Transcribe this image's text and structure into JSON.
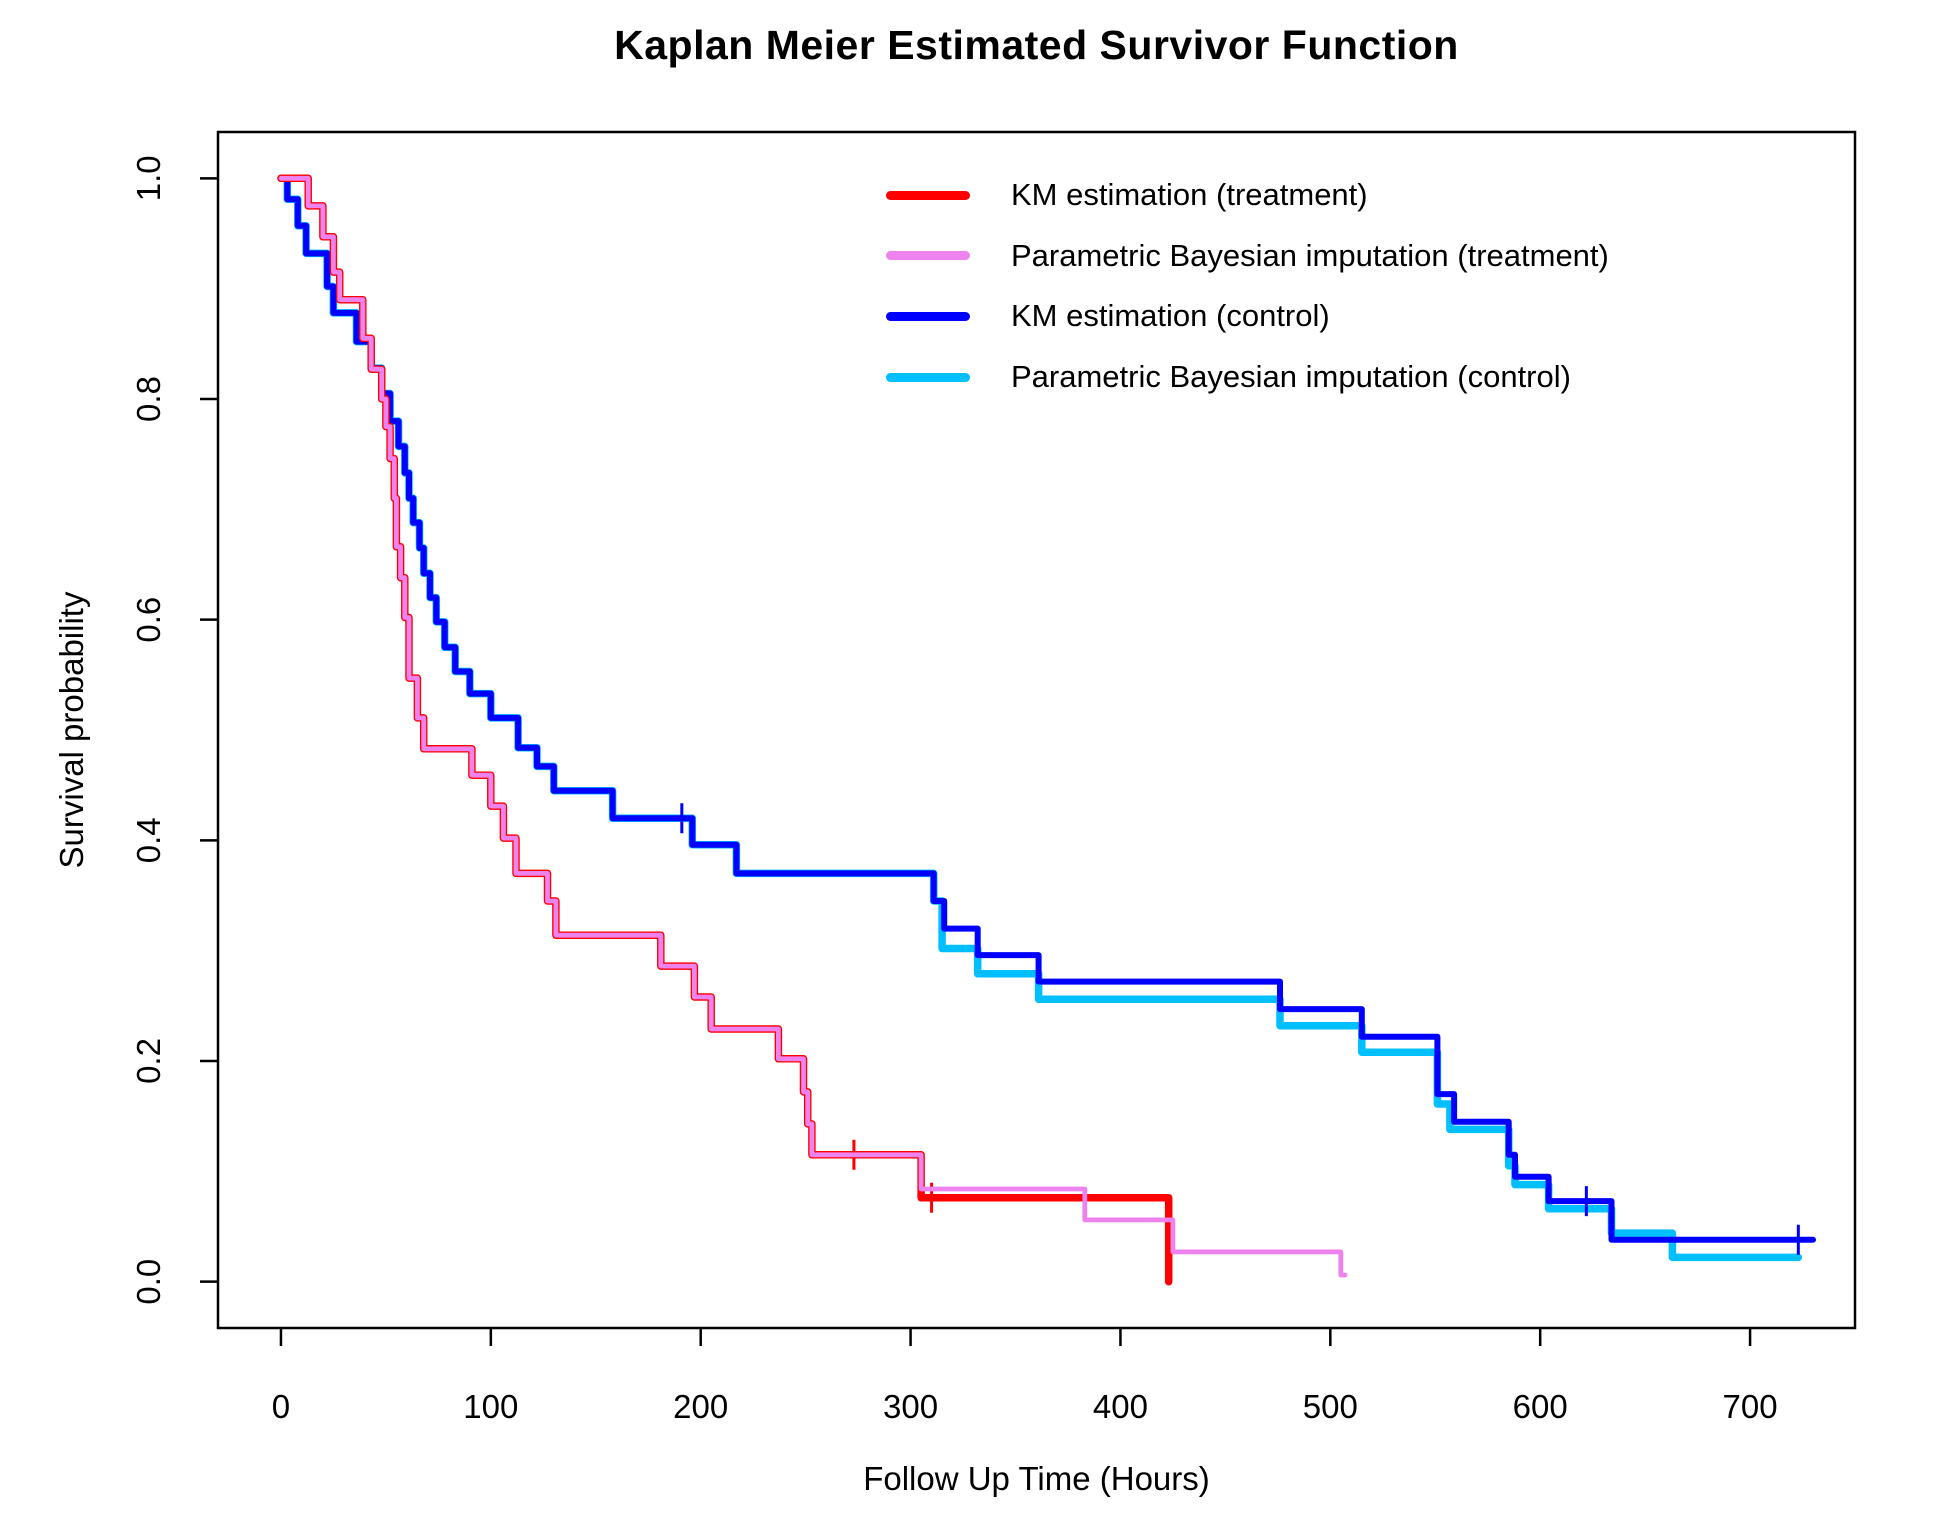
{
  "chart_data": {
    "type": "line",
    "subtype": "kaplan-meier-step",
    "title": "Kaplan Meier Estimated Survivor Function",
    "xlabel": "Follow Up Time (Hours)",
    "ylabel": "Survival probability",
    "xlim": [
      -30,
      750
    ],
    "ylim": [
      -0.042,
      1.042
    ],
    "x_ticks": [
      0,
      100,
      200,
      300,
      400,
      500,
      600,
      700
    ],
    "x_tick_labels": [
      "0",
      "100",
      "200",
      "300",
      "400",
      "500",
      "600",
      "700"
    ],
    "y_ticks": [
      0.0,
      0.2,
      0.4,
      0.6,
      0.8,
      1.0
    ],
    "y_tick_labels": [
      "0.0",
      "0.2",
      "0.4",
      "0.6",
      "0.8",
      "1.0"
    ],
    "grid": false,
    "legend_position": "topright",
    "series": [
      {
        "name": "KM estimation (treatment)",
        "color": "#FF0000",
        "width": 7.5,
        "z": 3,
        "end_t": 423,
        "censors": [
          [
            273,
            0.115
          ],
          [
            310,
            0.076
          ]
        ],
        "points": [
          [
            0,
            1.0
          ],
          [
            13,
            0.975
          ],
          [
            20,
            0.947
          ],
          [
            25,
            0.915
          ],
          [
            28,
            0.89
          ],
          [
            39,
            0.855
          ],
          [
            43,
            0.827
          ],
          [
            48,
            0.8
          ],
          [
            50,
            0.775
          ],
          [
            52,
            0.746
          ],
          [
            54,
            0.71
          ],
          [
            55,
            0.666
          ],
          [
            57,
            0.638
          ],
          [
            59,
            0.602
          ],
          [
            61,
            0.547
          ],
          [
            65,
            0.511
          ],
          [
            68,
            0.483
          ],
          [
            91,
            0.459
          ],
          [
            100,
            0.431
          ],
          [
            106,
            0.402
          ],
          [
            112,
            0.37
          ],
          [
            127,
            0.345
          ],
          [
            131,
            0.314
          ],
          [
            181,
            0.286
          ],
          [
            197,
            0.258
          ],
          [
            205,
            0.229
          ],
          [
            237,
            0.202
          ],
          [
            249,
            0.172
          ],
          [
            251,
            0.143
          ],
          [
            253,
            0.115
          ],
          [
            305,
            0.076
          ],
          [
            423,
            0.0
          ]
        ]
      },
      {
        "name": "Parametric Bayesian imputation (treatment)",
        "color": "#EE82EE",
        "width": 4.8,
        "z": 4,
        "end_t": 507,
        "censors": [],
        "points": [
          [
            0,
            1.0
          ],
          [
            13,
            0.975
          ],
          [
            20,
            0.947
          ],
          [
            25,
            0.915
          ],
          [
            28,
            0.89
          ],
          [
            39,
            0.855
          ],
          [
            43,
            0.827
          ],
          [
            48,
            0.8
          ],
          [
            50,
            0.775
          ],
          [
            52,
            0.746
          ],
          [
            54,
            0.71
          ],
          [
            55,
            0.666
          ],
          [
            57,
            0.638
          ],
          [
            59,
            0.602
          ],
          [
            61,
            0.547
          ],
          [
            65,
            0.511
          ],
          [
            68,
            0.483
          ],
          [
            91,
            0.459
          ],
          [
            100,
            0.431
          ],
          [
            106,
            0.402
          ],
          [
            112,
            0.37
          ],
          [
            127,
            0.345
          ],
          [
            131,
            0.314
          ],
          [
            181,
            0.286
          ],
          [
            197,
            0.258
          ],
          [
            205,
            0.229
          ],
          [
            237,
            0.202
          ],
          [
            249,
            0.172
          ],
          [
            251,
            0.143
          ],
          [
            253,
            0.115
          ],
          [
            305,
            0.084
          ],
          [
            383,
            0.056
          ],
          [
            425,
            0.027
          ],
          [
            505,
            0.006
          ]
        ]
      },
      {
        "name": "KM estimation (control)",
        "color": "#0000FF",
        "width": 6,
        "z": 2,
        "end_t": 730,
        "censors": [
          [
            191,
            0.42
          ],
          [
            622,
            0.073
          ],
          [
            723,
            0.038
          ]
        ],
        "points": [
          [
            0,
            1.0
          ],
          [
            3,
            0.981
          ],
          [
            8,
            0.957
          ],
          [
            12,
            0.932
          ],
          [
            22,
            0.902
          ],
          [
            25,
            0.878
          ],
          [
            36,
            0.852
          ],
          [
            43,
            0.828
          ],
          [
            48,
            0.805
          ],
          [
            52,
            0.78
          ],
          [
            56,
            0.757
          ],
          [
            59,
            0.733
          ],
          [
            61,
            0.71
          ],
          [
            63,
            0.688
          ],
          [
            66,
            0.665
          ],
          [
            68,
            0.642
          ],
          [
            71,
            0.62
          ],
          [
            74,
            0.598
          ],
          [
            78,
            0.575
          ],
          [
            83,
            0.553
          ],
          [
            90,
            0.533
          ],
          [
            100,
            0.511
          ],
          [
            113,
            0.484
          ],
          [
            122,
            0.467
          ],
          [
            130,
            0.445
          ],
          [
            158,
            0.42
          ],
          [
            196,
            0.396
          ],
          [
            217,
            0.37
          ],
          [
            311,
            0.345
          ],
          [
            316,
            0.32
          ],
          [
            332,
            0.296
          ],
          [
            361,
            0.272
          ],
          [
            476,
            0.247
          ],
          [
            515,
            0.222
          ],
          [
            551,
            0.17
          ],
          [
            559,
            0.145
          ],
          [
            585,
            0.115
          ],
          [
            588,
            0.095
          ],
          [
            604,
            0.073
          ],
          [
            634,
            0.038
          ]
        ]
      },
      {
        "name": "Parametric Bayesian imputation (control)",
        "color": "#00BFFF",
        "width": 7.5,
        "z": 1,
        "end_t": 723,
        "censors": [],
        "points": [
          [
            0,
            1.0
          ],
          [
            3,
            0.981
          ],
          [
            8,
            0.957
          ],
          [
            12,
            0.932
          ],
          [
            22,
            0.902
          ],
          [
            25,
            0.878
          ],
          [
            36,
            0.852
          ],
          [
            43,
            0.828
          ],
          [
            48,
            0.805
          ],
          [
            52,
            0.78
          ],
          [
            56,
            0.757
          ],
          [
            59,
            0.733
          ],
          [
            61,
            0.71
          ],
          [
            63,
            0.688
          ],
          [
            66,
            0.665
          ],
          [
            68,
            0.642
          ],
          [
            71,
            0.62
          ],
          [
            74,
            0.598
          ],
          [
            78,
            0.575
          ],
          [
            83,
            0.553
          ],
          [
            90,
            0.533
          ],
          [
            100,
            0.511
          ],
          [
            113,
            0.484
          ],
          [
            122,
            0.467
          ],
          [
            130,
            0.445
          ],
          [
            158,
            0.42
          ],
          [
            196,
            0.396
          ],
          [
            217,
            0.37
          ],
          [
            311,
            0.345
          ],
          [
            315,
            0.302
          ],
          [
            332,
            0.279
          ],
          [
            361,
            0.256
          ],
          [
            476,
            0.232
          ],
          [
            515,
            0.208
          ],
          [
            551,
            0.161
          ],
          [
            557,
            0.138
          ],
          [
            585,
            0.105
          ],
          [
            588,
            0.088
          ],
          [
            604,
            0.066
          ],
          [
            634,
            0.044
          ],
          [
            663,
            0.022
          ]
        ]
      }
    ]
  }
}
